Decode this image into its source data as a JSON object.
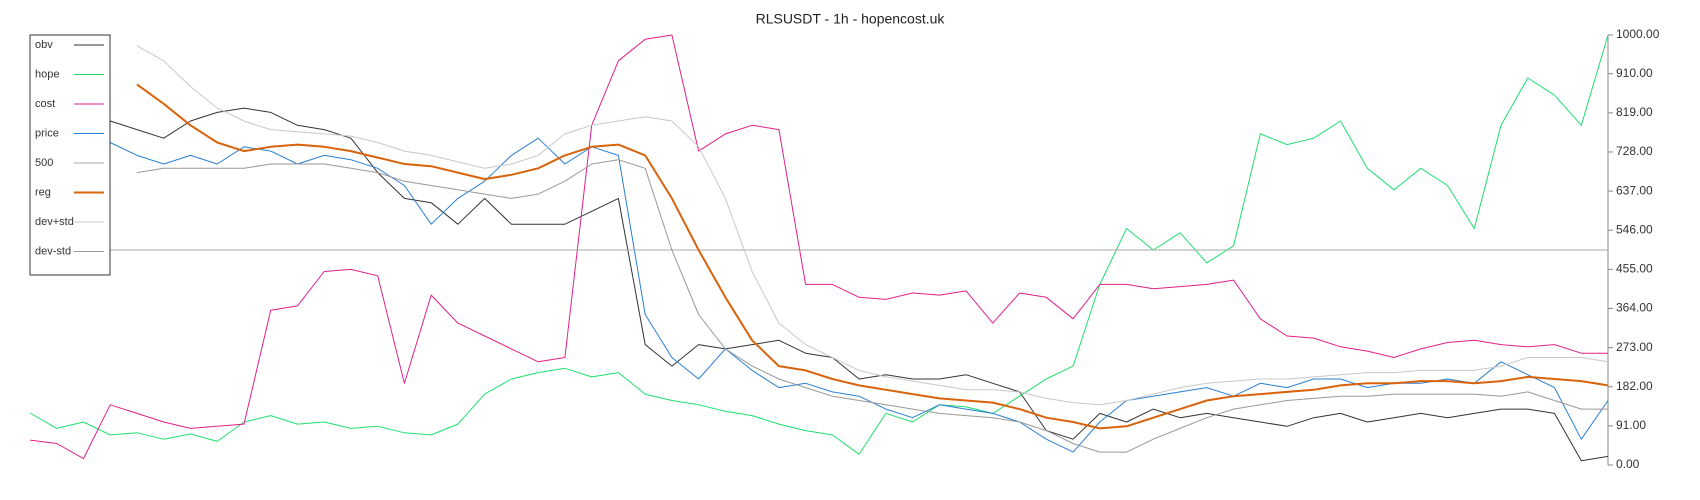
{
  "chart_data": {
    "type": "line",
    "title": "RLSUSDT - 1h - hopencost.uk",
    "ylim": [
      0,
      1000
    ],
    "yticks": [
      {
        "value": 0,
        "label": "0.00"
      },
      {
        "value": 91,
        "label": "91.00"
      },
      {
        "value": 182,
        "label": "182.00"
      },
      {
        "value": 273,
        "label": "273.00"
      },
      {
        "value": 364,
        "label": "364.00"
      },
      {
        "value": 455,
        "label": "455.00"
      },
      {
        "value": 546,
        "label": "546.00"
      },
      {
        "value": 637,
        "label": "637.00"
      },
      {
        "value": 728,
        "label": "728.00"
      },
      {
        "value": 819,
        "label": "819.00"
      },
      {
        "value": 910,
        "label": "910.00"
      },
      {
        "value": 1000,
        "label": "1000.00"
      }
    ],
    "legend": "upper left",
    "series": [
      {
        "name": "obv",
        "color": "#333333",
        "width": 1,
        "values": [
          null,
          null,
          null,
          800,
          780,
          760,
          800,
          820,
          830,
          820,
          790,
          780,
          760,
          680,
          620,
          610,
          560,
          620,
          560,
          560,
          560,
          590,
          620,
          280,
          230,
          280,
          270,
          280,
          290,
          260,
          250,
          200,
          210,
          200,
          200,
          210,
          190,
          170,
          80,
          60,
          120,
          100,
          130,
          110,
          120,
          110,
          100,
          90,
          110,
          120,
          100,
          110,
          120,
          110,
          120,
          130,
          130,
          120,
          10,
          20
        ]
      },
      {
        "name": "hope",
        "color": "#1ee06e",
        "width": 1,
        "values": [
          121,
          85,
          100,
          70,
          75,
          60,
          72,
          55,
          100,
          115,
          95,
          100,
          85,
          90,
          75,
          70,
          95,
          165,
          200,
          215,
          225,
          205,
          215,
          165,
          150,
          140,
          125,
          115,
          95,
          80,
          70,
          25,
          120,
          100,
          140,
          135,
          120,
          160,
          200,
          230,
          420,
          550,
          500,
          540,
          470,
          510,
          770,
          745,
          760,
          800,
          690,
          640,
          690,
          650,
          550,
          790,
          900,
          860,
          790,
          1000
        ]
      },
      {
        "name": "cost",
        "color": "#e0208a",
        "width": 1,
        "values": [
          58,
          50,
          15,
          140,
          120,
          100,
          85,
          90,
          95,
          360,
          370,
          450,
          455,
          440,
          190,
          395,
          330,
          300,
          270,
          240,
          250,
          790,
          940,
          990,
          1000,
          730,
          770,
          790,
          780,
          420,
          420,
          390,
          385,
          400,
          395,
          405,
          330,
          400,
          390,
          340,
          420,
          420,
          410,
          415,
          420,
          430,
          340,
          300,
          295,
          275,
          265,
          250,
          270,
          285,
          290,
          280,
          275,
          280,
          260,
          260
        ]
      },
      {
        "name": "price",
        "color": "#2a7fd4",
        "width": 1,
        "values": [
          null,
          null,
          null,
          750,
          720,
          700,
          720,
          700,
          740,
          730,
          700,
          720,
          710,
          690,
          650,
          560,
          620,
          660,
          720,
          760,
          700,
          740,
          720,
          350,
          250,
          200,
          270,
          220,
          180,
          190,
          170,
          160,
          130,
          110,
          140,
          130,
          120,
          100,
          60,
          30,
          100,
          150,
          160,
          170,
          180,
          160,
          190,
          180,
          200,
          200,
          180,
          190,
          190,
          200,
          190,
          240,
          210,
          180,
          60,
          150
        ]
      },
      {
        "name": "500",
        "color": "#aaaaaa",
        "width": 1,
        "values": [
          500,
          500,
          500,
          500,
          500,
          500,
          500,
          500,
          500,
          500,
          500,
          500,
          500,
          500,
          500,
          500,
          500,
          500,
          500,
          500,
          500,
          500,
          500,
          500,
          500,
          500,
          500,
          500,
          500,
          500,
          500,
          500,
          500,
          500,
          500,
          500,
          500,
          500,
          500,
          500,
          500,
          500,
          500,
          500,
          500,
          500,
          500,
          500,
          500,
          500,
          500,
          500,
          500,
          500,
          500,
          500,
          500,
          500,
          500,
          500
        ]
      },
      {
        "name": "reg",
        "color": "#d9630b",
        "width": 2,
        "values": [
          null,
          null,
          null,
          null,
          885,
          840,
          790,
          750,
          730,
          740,
          745,
          740,
          730,
          715,
          700,
          695,
          680,
          665,
          675,
          690,
          720,
          740,
          745,
          720,
          620,
          500,
          390,
          290,
          230,
          220,
          200,
          185,
          175,
          165,
          155,
          150,
          145,
          130,
          110,
          100,
          85,
          90,
          110,
          130,
          150,
          160,
          165,
          170,
          175,
          185,
          190,
          190,
          195,
          195,
          190,
          195,
          205,
          200,
          195,
          185
        ]
      },
      {
        "name": "dev+std",
        "color": "#c8c8c8",
        "width": 1,
        "values": [
          null,
          null,
          null,
          null,
          975,
          940,
          880,
          830,
          800,
          780,
          775,
          770,
          765,
          750,
          730,
          720,
          705,
          690,
          700,
          720,
          770,
          790,
          800,
          810,
          800,
          740,
          620,
          450,
          330,
          280,
          250,
          220,
          205,
          195,
          185,
          175,
          175,
          170,
          155,
          145,
          140,
          150,
          165,
          180,
          190,
          195,
          200,
          200,
          205,
          210,
          215,
          215,
          220,
          220,
          220,
          230,
          250,
          250,
          250,
          240
        ]
      },
      {
        "name": "dev-std",
        "color": "#999999",
        "width": 1,
        "values": [
          null,
          null,
          null,
          null,
          680,
          690,
          690,
          690,
          690,
          700,
          700,
          700,
          690,
          680,
          660,
          650,
          640,
          630,
          620,
          630,
          660,
          700,
          710,
          690,
          500,
          350,
          270,
          230,
          200,
          180,
          160,
          150,
          140,
          130,
          120,
          115,
          110,
          100,
          80,
          50,
          30,
          30,
          60,
          85,
          110,
          130,
          140,
          150,
          155,
          160,
          160,
          165,
          165,
          165,
          165,
          160,
          170,
          150,
          130,
          130
        ]
      }
    ]
  }
}
